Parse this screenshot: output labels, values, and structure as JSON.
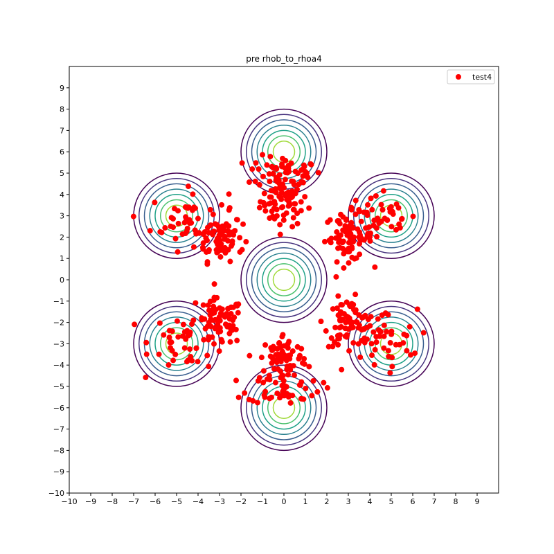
{
  "chart_data": {
    "type": "scatter",
    "title": "pre rhob_to_rhoa4",
    "xlabel": "",
    "ylabel": "",
    "xlim": [
      -10,
      10
    ],
    "ylim": [
      -10,
      10
    ],
    "x_ticks": [
      -10,
      -9,
      -8,
      -7,
      -6,
      -5,
      -4,
      -3,
      -2,
      -1,
      0,
      1,
      2,
      3,
      4,
      5,
      6,
      7,
      8,
      9
    ],
    "y_ticks": [
      -10,
      -9,
      -8,
      -7,
      -6,
      -5,
      -4,
      -3,
      -2,
      -1,
      0,
      1,
      2,
      3,
      4,
      5,
      6,
      7,
      8,
      9
    ],
    "grid": false,
    "legend": {
      "position": "top-right",
      "entries": [
        "test4"
      ]
    },
    "series": [
      {
        "name": "test4",
        "color": "#ff0000",
        "clusters": [
          {
            "center": [
              0,
              3.7
            ],
            "spread": [
              0.55,
              0.6
            ],
            "count": 80
          },
          {
            "center": [
              0,
              5.1
            ],
            "spread": [
              0.85,
              0.35
            ],
            "count": 45
          },
          {
            "center": [
              -3.0,
              2.0
            ],
            "spread": [
              0.55,
              0.55
            ],
            "count": 70
          },
          {
            "center": [
              -4.4,
              2.8
            ],
            "spread": [
              0.9,
              0.7
            ],
            "count": 50
          },
          {
            "center": [
              3.0,
              2.0
            ],
            "spread": [
              0.55,
              0.55
            ],
            "count": 70
          },
          {
            "center": [
              4.4,
              2.8
            ],
            "spread": [
              0.9,
              0.7
            ],
            "count": 50
          },
          {
            "center": [
              -3.0,
              -2.0
            ],
            "spread": [
              0.55,
              0.55
            ],
            "count": 70
          },
          {
            "center": [
              -4.4,
              -2.8
            ],
            "spread": [
              0.9,
              0.7
            ],
            "count": 50
          },
          {
            "center": [
              3.0,
              -2.0
            ],
            "spread": [
              0.55,
              0.55
            ],
            "count": 70
          },
          {
            "center": [
              4.4,
              -2.8
            ],
            "spread": [
              0.9,
              0.7
            ],
            "count": 50
          },
          {
            "center": [
              0,
              -3.7
            ],
            "spread": [
              0.55,
              0.6
            ],
            "count": 80
          },
          {
            "center": [
              0,
              -5.1
            ],
            "spread": [
              0.85,
              0.35
            ],
            "count": 45
          }
        ]
      }
    ],
    "contours": {
      "centers": [
        [
          0,
          0
        ],
        [
          0,
          6
        ],
        [
          0,
          -6
        ],
        [
          -5,
          3
        ],
        [
          5,
          3
        ],
        [
          -5,
          -3
        ],
        [
          5,
          -3
        ]
      ],
      "radii": [
        2.0,
        1.75,
        1.5,
        1.25,
        1.0,
        0.75,
        0.5
      ],
      "colors": [
        "#440154",
        "#46327e",
        "#365c8d",
        "#277f8e",
        "#1fa187",
        "#4ac16d",
        "#a0da39"
      ]
    }
  }
}
